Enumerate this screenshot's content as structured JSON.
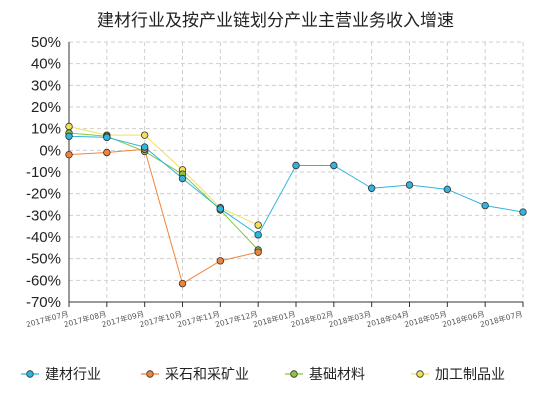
{
  "chart_data": {
    "type": "line",
    "title": "建材行业及按产业链划分产业主营业务收入增速",
    "categories": [
      "2017年07月",
      "2017年08月",
      "2017年09月",
      "2017年10月",
      "2017年11月",
      "2017年12月",
      "2018年01月",
      "2018年02月",
      "2018年03月",
      "2018年04月",
      "2018年05月",
      "2018年06月",
      "2018年07月"
    ],
    "y_tick_labels": [
      "50%",
      "40%",
      "30%",
      "20%",
      "10%",
      "0%",
      "-10%",
      "-20%",
      "-30%",
      "-40%",
      "-50%",
      "-60%",
      "-70%"
    ],
    "ylim": [
      -70,
      50
    ],
    "y_unit": "%",
    "grid": true,
    "legend_position": "bottom",
    "series": [
      {
        "name": "建材行业",
        "color": "#2fb6e0",
        "values": [
          6.5,
          6,
          1.5,
          -13,
          -27,
          -39,
          -7,
          -7,
          -17.5,
          -16,
          -18,
          -25.5,
          -28.5
        ]
      },
      {
        "name": "采石和采矿业",
        "color": "#f0843c",
        "values": [
          -2,
          -1,
          0.5,
          -61.5,
          -51,
          -47,
          null,
          null,
          null,
          null,
          null,
          null,
          null
        ]
      },
      {
        "name": "基础材料",
        "color": "#8cc63f",
        "values": [
          8,
          6.5,
          -0.5,
          -11,
          -27.5,
          -46,
          null,
          null,
          null,
          null,
          null,
          null,
          null
        ]
      },
      {
        "name": "加工制品业",
        "color": "#f2e05a",
        "values": [
          11,
          7,
          7,
          -9,
          -26.5,
          -34.5,
          null,
          null,
          null,
          null,
          null,
          null,
          null
        ]
      }
    ]
  }
}
